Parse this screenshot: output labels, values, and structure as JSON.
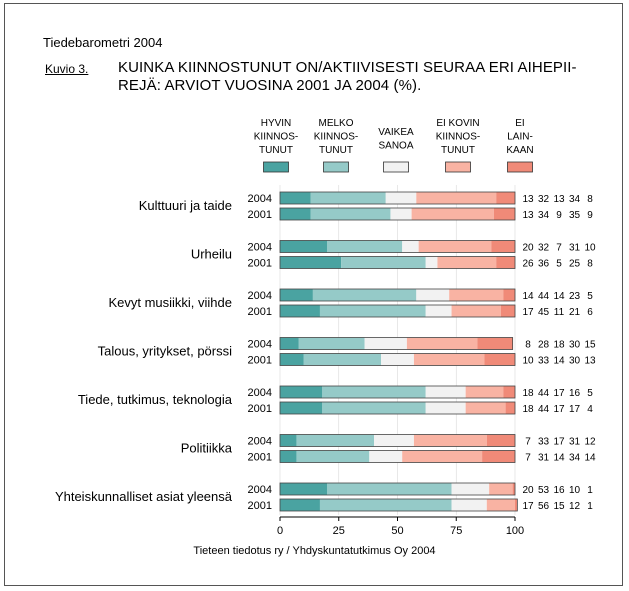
{
  "header": {
    "report": "Tiedebarometri 2004",
    "figure_label": "Kuvio 3.",
    "title_line1": "KUINKA KIINNOSTUNUT ON/AKTIIVISESTI SEURAA ERI AIHEPII-",
    "title_line2": "REJÄ: ARVIOT VUOSINA 2001 JA 2004 (%)."
  },
  "footer": {
    "source": "Tieteen tiedotus ry / Yhdyskuntatutkimus Oy 2004"
  },
  "chart_data": {
    "type": "bar",
    "stacked": true,
    "orientation": "horizontal",
    "title": "KUINKA KIINNOSTUNUT ON/AKTIIVISESTI SEURAA ERI AIHEPIIREJÄ: ARVIOT VUOSINA 2001 JA 2004 (%).",
    "xlim": [
      0,
      100
    ],
    "xticks": [
      0,
      25,
      50,
      75,
      100
    ],
    "legend": [
      {
        "lines": [
          "HYVIN",
          "KIINNOS-",
          "TUNUT"
        ],
        "color": "#4aa3a1"
      },
      {
        "lines": [
          "MELKO",
          "KIINNOS-",
          "TUNUT"
        ],
        "color": "#95cac8"
      },
      {
        "lines": [
          "VAIKEA",
          "SANOA"
        ],
        "color": "#f2f2f2"
      },
      {
        "lines": [
          "EI KOVIN",
          "KIINNOS-",
          "TUNUT"
        ],
        "color": "#f9b3a3"
      },
      {
        "lines": [
          "EI",
          "LAIN-",
          "KAAN"
        ],
        "color": "#f08a78"
      }
    ],
    "categories": [
      {
        "name": "Kulttuuri ja taide",
        "rows": [
          {
            "year": "2004",
            "values": [
              13,
              32,
              13,
              34,
              8
            ]
          },
          {
            "year": "2001",
            "values": [
              13,
              34,
              9,
              35,
              9
            ]
          }
        ]
      },
      {
        "name": "Urheilu",
        "rows": [
          {
            "year": "2004",
            "values": [
              20,
              32,
              7,
              31,
              10
            ]
          },
          {
            "year": "2001",
            "values": [
              26,
              36,
              5,
              25,
              8
            ]
          }
        ]
      },
      {
        "name": "Kevyt musiikki, viihde",
        "rows": [
          {
            "year": "2004",
            "values": [
              14,
              44,
              14,
              23,
              5
            ]
          },
          {
            "year": "2001",
            "values": [
              17,
              45,
              11,
              21,
              6
            ]
          }
        ]
      },
      {
        "name": "Talous, yritykset, pörssi",
        "rows": [
          {
            "year": "2004",
            "values": [
              8,
              28,
              18,
              30,
              15
            ]
          },
          {
            "year": "2001",
            "values": [
              10,
              33,
              14,
              30,
              13
            ]
          }
        ]
      },
      {
        "name": "Tiede, tutkimus, teknologia",
        "rows": [
          {
            "year": "2004",
            "values": [
              18,
              44,
              17,
              16,
              5
            ]
          },
          {
            "year": "2001",
            "values": [
              18,
              44,
              17,
              17,
              4
            ]
          }
        ]
      },
      {
        "name": "Politiikka",
        "rows": [
          {
            "year": "2004",
            "values": [
              7,
              33,
              17,
              31,
              12
            ]
          },
          {
            "year": "2001",
            "values": [
              7,
              31,
              14,
              34,
              14
            ]
          }
        ]
      },
      {
        "name": "Yhteiskunnalliset asiat yleensä",
        "rows": [
          {
            "year": "2004",
            "values": [
              20,
              53,
              16,
              10,
              1
            ]
          },
          {
            "year": "2001",
            "values": [
              17,
              56,
              15,
              12,
              1
            ]
          }
        ]
      }
    ]
  }
}
